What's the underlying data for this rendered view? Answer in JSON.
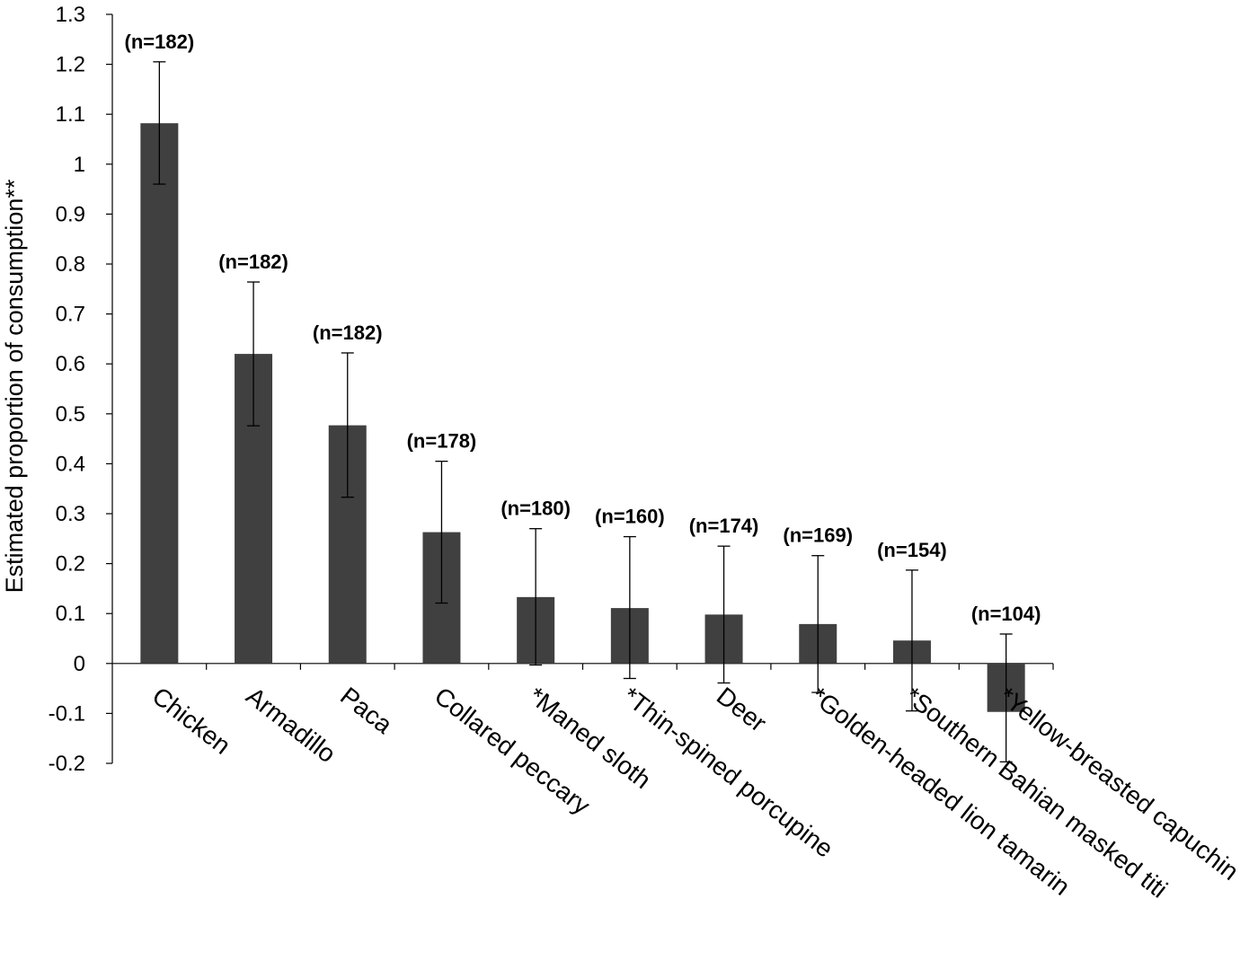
{
  "chart_data": {
    "type": "bar",
    "title": "",
    "xlabel": "",
    "ylabel": "Estimated proportion of consumption**",
    "ylim": [
      -0.2,
      1.3
    ],
    "yticks": [
      -0.2,
      -0.1,
      0,
      0.1,
      0.2,
      0.3,
      0.4,
      0.5,
      0.6,
      0.7,
      0.8,
      0.9,
      1,
      1.1,
      1.2,
      1.3
    ],
    "ytick_labels": [
      "-0.2",
      "-0.1",
      "0",
      "0.1",
      "0.2",
      "0.3",
      "0.4",
      "0.5",
      "0.6",
      "0.7",
      "0.8",
      "0.9",
      "1",
      "1.1",
      "1.2",
      "1.3"
    ],
    "grid": false,
    "legend": "none",
    "bar_color": "#404040",
    "categories": [
      "Chicken",
      "Armadillo",
      "Paca",
      "Collared peccary",
      "*Maned sloth",
      "*Thin-spined porcupine",
      "Deer",
      "*Golden-headed lion tamarin",
      "*Southern Bahian masked titi",
      "*Yellow-breasted capuchin"
    ],
    "values": [
      1.082,
      0.62,
      0.477,
      0.263,
      0.133,
      0.111,
      0.098,
      0.079,
      0.046,
      -0.097
    ],
    "error_low": [
      0.96,
      0.476,
      0.333,
      0.121,
      -0.003,
      -0.03,
      -0.039,
      -0.058,
      -0.095,
      -0.197
    ],
    "error_high": [
      1.205,
      0.764,
      0.622,
      0.405,
      0.27,
      0.254,
      0.235,
      0.216,
      0.187,
      0.059
    ],
    "n_labels": [
      "(n=182)",
      "(n=182)",
      "(n=182)",
      "(n=178)",
      "(n=180)",
      "(n=160)",
      "(n=174)",
      "(n=169)",
      "(n=154)",
      "(n=104)"
    ]
  }
}
